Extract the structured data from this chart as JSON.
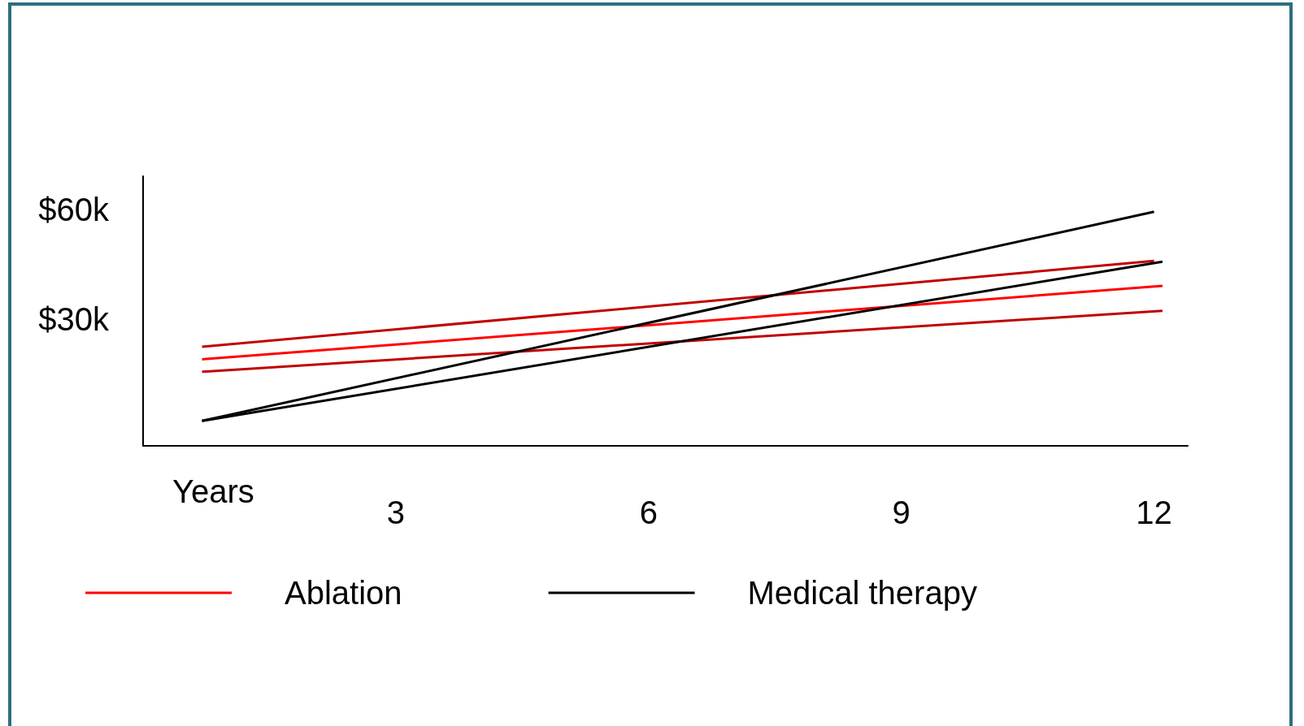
{
  "chart_data": {
    "type": "line",
    "xlabel": "Years",
    "xlim": [
      0,
      12.4
    ],
    "xticks": [
      3,
      6,
      9,
      12
    ],
    "ylim": [
      -4.5,
      69
    ],
    "yticks": [
      {
        "value": 30,
        "label": "$30k"
      },
      {
        "value": 60,
        "label": "$60k"
      }
    ],
    "grid": false,
    "legend": "bottom",
    "marker": "none",
    "line_style": "solid",
    "series": [
      {
        "color": "#c00000",
        "x": [
          0.7,
          12
        ],
        "values": [
          22.5,
          45.9
        ]
      },
      {
        "name": "Ablation",
        "color": "#ff0000",
        "x": [
          0.7,
          12.1
        ],
        "values": [
          19.1,
          39.1
        ]
      },
      {
        "color": "#c00000",
        "x": [
          0.7,
          12.1
        ],
        "values": [
          15.7,
          32.3
        ]
      },
      {
        "name": "Medical therapy",
        "color": "#000000",
        "x": [
          0.7,
          12
        ],
        "values": [
          2.3,
          59.3
        ]
      },
      {
        "color": "#000000",
        "x": [
          0.7,
          12.1
        ],
        "values": [
          2.3,
          45.7
        ]
      }
    ]
  }
}
